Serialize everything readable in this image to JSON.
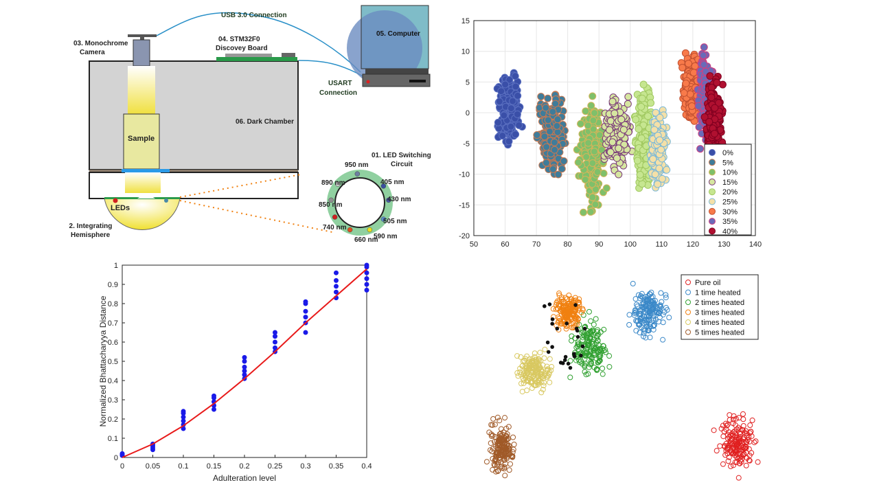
{
  "setup": {
    "usb": "USB 3.0 Connection",
    "camera_num": "03. Monochrome",
    "camera_word": "Camera",
    "board_num": "04.  STM32F0",
    "board_word": "Discovey Board",
    "computer": "05. Computer",
    "usart1": "USART",
    "usart2": "Connection",
    "chamber": "06. Dark Chamber",
    "sample": "Sample",
    "leds": "LEDs",
    "hemi1": "02. Integrating",
    "hemi2": "Hemisphere",
    "switch1": "01. LED Switching",
    "switch2": "Circuit",
    "wavelengths": [
      "950 nm",
      "405 nm",
      "430 nm",
      "505 nm",
      "590 nm",
      "660 nm",
      "740 nm",
      "850 nm",
      "890 nm"
    ],
    "led_colors": [
      "#6d7fa0",
      "#3a4fa0",
      "#4a5aa8",
      "#5a8cc8",
      "#e8e020",
      "#e05020",
      "#d02020",
      "#909090",
      "#c8c8c8"
    ]
  },
  "chart_data": [
    {
      "type": "scatter",
      "xlim": [
        50,
        140
      ],
      "ylim": [
        -20,
        15
      ],
      "xticks": [
        "50",
        "60",
        "70",
        "80",
        "90",
        "100",
        "110",
        "120",
        "130",
        "140"
      ],
      "yticks": [
        "15",
        "10",
        "5",
        "0",
        "-5",
        "-10",
        "-15",
        "-20"
      ],
      "grid": true,
      "legend_position": "bottom-right",
      "series": [
        {
          "name": "0%",
          "color": "#3a4fa8",
          "edge": "#5a6fc0",
          "cx": [
            57,
            66
          ],
          "cy": [
            -6,
            7
          ]
        },
        {
          "name": "5%",
          "color": "#3f7c9a",
          "edge": "#c87850",
          "cx": [
            70,
            80
          ],
          "cy": [
            -12,
            6
          ]
        },
        {
          "name": "10%",
          "color": "#7fc06a",
          "edge": "#d4b45a",
          "cx": [
            83,
            93
          ],
          "cy": [
            -18,
            3
          ]
        },
        {
          "name": "15%",
          "color": "#d6e6a0",
          "edge": "#7a3a7a",
          "cx": [
            91,
            101
          ],
          "cy": [
            -11,
            4
          ]
        },
        {
          "name": "20%",
          "color": "#c6e690",
          "edge": "#a0c860",
          "cx": [
            101,
            108
          ],
          "cy": [
            -14,
            5
          ]
        },
        {
          "name": "25%",
          "color": "#f4e0a8",
          "edge": "#7ab8d8",
          "cx": [
            106,
            112
          ],
          "cy": [
            -13,
            1
          ]
        },
        {
          "name": "30%",
          "color": "#f87a4a",
          "edge": "#c05030",
          "cx": [
            116,
            123
          ],
          "cy": [
            -2,
            11
          ]
        },
        {
          "name": "35%",
          "color": "#6a6ab8",
          "edge": "#d04080",
          "cx": [
            121,
            127
          ],
          "cy": [
            -6,
            12
          ]
        },
        {
          "name": "40%",
          "color": "#b01030",
          "edge": "#800020",
          "cx": [
            124,
            130
          ],
          "cy": [
            -9,
            7
          ]
        }
      ]
    },
    {
      "type": "scatter",
      "xlabel": "Adulteration level",
      "ylabel": "Normalized Bhattacharyya Distance",
      "xlim": [
        0,
        0.4
      ],
      "ylim": [
        0,
        1
      ],
      "xticks": [
        "0",
        "0.05",
        "0.1",
        "0.15",
        "0.2",
        "0.25",
        "0.3",
        "0.35",
        "0.4"
      ],
      "yticks": [
        "1",
        "0.9",
        "0.8",
        "0.7",
        "0.6",
        "0.5",
        "0.4",
        "0.3",
        "0.2",
        "0.1",
        "0"
      ],
      "points": [
        [
          0,
          0.01
        ],
        [
          0,
          0.015
        ],
        [
          0,
          0.02
        ],
        [
          0.05,
          0.04
        ],
        [
          0.05,
          0.05
        ],
        [
          0.05,
          0.06
        ],
        [
          0.05,
          0.07
        ],
        [
          0.1,
          0.15
        ],
        [
          0.1,
          0.17
        ],
        [
          0.1,
          0.19
        ],
        [
          0.1,
          0.21
        ],
        [
          0.1,
          0.23
        ],
        [
          0.1,
          0.24
        ],
        [
          0.15,
          0.25
        ],
        [
          0.15,
          0.27
        ],
        [
          0.15,
          0.29
        ],
        [
          0.15,
          0.31
        ],
        [
          0.15,
          0.32
        ],
        [
          0.2,
          0.41
        ],
        [
          0.2,
          0.43
        ],
        [
          0.2,
          0.45
        ],
        [
          0.2,
          0.47
        ],
        [
          0.2,
          0.5
        ],
        [
          0.2,
          0.52
        ],
        [
          0.25,
          0.55
        ],
        [
          0.25,
          0.57
        ],
        [
          0.25,
          0.6
        ],
        [
          0.25,
          0.63
        ],
        [
          0.25,
          0.65
        ],
        [
          0.3,
          0.65
        ],
        [
          0.3,
          0.7
        ],
        [
          0.3,
          0.73
        ],
        [
          0.3,
          0.76
        ],
        [
          0.3,
          0.8
        ],
        [
          0.3,
          0.81
        ],
        [
          0.35,
          0.83
        ],
        [
          0.35,
          0.86
        ],
        [
          0.35,
          0.89
        ],
        [
          0.35,
          0.92
        ],
        [
          0.35,
          0.96
        ],
        [
          0.4,
          0.87
        ],
        [
          0.4,
          0.9
        ],
        [
          0.4,
          0.93
        ],
        [
          0.4,
          0.96
        ],
        [
          0.4,
          0.99
        ],
        [
          0.4,
          1.0
        ]
      ],
      "fit": [
        [
          0,
          0
        ],
        [
          0.05,
          0.07
        ],
        [
          0.1,
          0.165
        ],
        [
          0.15,
          0.28
        ],
        [
          0.2,
          0.41
        ],
        [
          0.25,
          0.55
        ],
        [
          0.3,
          0.7
        ],
        [
          0.35,
          0.84
        ],
        [
          0.4,
          0.98
        ]
      ]
    },
    {
      "type": "scatter",
      "legend_position": "top-right",
      "series": [
        {
          "name": "Pure oil",
          "color": "#e02020",
          "cx": [
            0.8,
            0.96
          ],
          "cy": [
            0.62,
            0.98
          ]
        },
        {
          "name": "1 time heated",
          "color": "#3a88c8",
          "cx": [
            0.53,
            0.68
          ],
          "cy": [
            0.05,
            0.35
          ]
        },
        {
          "name": "2 times heated",
          "color": "#30a030",
          "cx": [
            0.35,
            0.5
          ],
          "cy": [
            0.18,
            0.55
          ]
        },
        {
          "name": "3 times heated",
          "color": "#f08010",
          "cx": [
            0.3,
            0.42
          ],
          "cy": [
            0.1,
            0.3
          ]
        },
        {
          "name": "4 times heated",
          "color": "#d8c860",
          "cx": [
            0.18,
            0.32
          ],
          "cy": [
            0.35,
            0.6
          ]
        },
        {
          "name": "5 times heated",
          "color": "#a05a28",
          "cx": [
            0.1,
            0.2
          ],
          "cy": [
            0.65,
            0.98
          ]
        }
      ]
    }
  ]
}
